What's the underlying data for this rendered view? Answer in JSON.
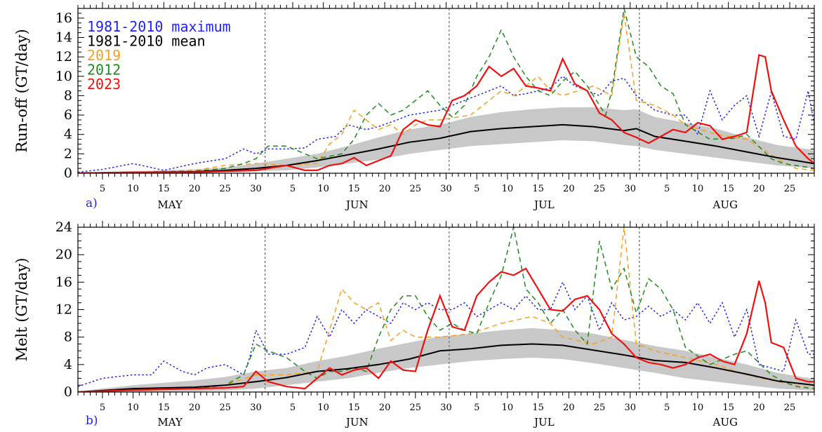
{
  "chart_data": [
    {
      "panel_label": "a)",
      "type": "line",
      "ylabel": "Run-off (GT/day)",
      "ylim": [
        0,
        17
      ],
      "yticks": [
        0,
        2,
        4,
        6,
        8,
        10,
        12,
        14,
        16
      ],
      "x_day_ticks": [
        "5",
        "10",
        "15",
        "20",
        "25",
        "30",
        "5",
        "10",
        "15",
        "20",
        "25",
        "30",
        "5",
        "10",
        "15",
        "20",
        "25",
        "30",
        "5",
        "10",
        "15",
        "20",
        "25"
      ],
      "months": [
        "MAY",
        "JUN",
        "JUL",
        "AUG"
      ],
      "legend": [
        {
          "label": "1981-2010 maximum",
          "color": "#2222ee"
        },
        {
          "label": "1981-2010 mean",
          "color": "#000000"
        },
        {
          "label": "2019",
          "color": "#f5a020"
        },
        {
          "label": "2012",
          "color": "#1f8a1f"
        },
        {
          "label": "2023",
          "color": "#ee1111"
        }
      ],
      "series": [
        {
          "name": "1981-2010 maximum",
          "color": "#2222ee",
          "style": "dotted",
          "x": [
            1,
            5,
            10,
            15,
            20,
            25,
            28,
            30,
            32,
            35,
            38,
            40,
            43,
            45,
            48,
            50,
            53,
            55,
            58,
            60,
            62,
            64,
            66,
            68,
            70,
            72,
            74,
            76,
            78,
            80,
            82,
            84,
            86,
            88,
            90,
            92,
            95,
            98,
            100,
            102,
            104,
            106,
            108,
            110,
            112,
            114,
            116,
            118,
            120,
            121
          ],
          "y": [
            0.1,
            0.4,
            1,
            0.3,
            1,
            1.5,
            2.5,
            2,
            2.5,
            2.5,
            2.6,
            3.5,
            3.8,
            5,
            4.5,
            4.8,
            5.5,
            6,
            6.3,
            6.5,
            7,
            7.5,
            8,
            8.5,
            9,
            8,
            8.2,
            8.5,
            8.8,
            10,
            9,
            8.5,
            8,
            9.5,
            9.8,
            8,
            6.5,
            6,
            6,
            4,
            8.5,
            5.5,
            7,
            8,
            3.8,
            8.4,
            3.8,
            3.5,
            8.5,
            5
          ]
        },
        {
          "name": "1981-2010 mean",
          "color": "#000000",
          "style": "solid",
          "x": [
            1,
            10,
            20,
            25,
            30,
            35,
            40,
            45,
            50,
            55,
            60,
            65,
            70,
            75,
            80,
            85,
            90,
            92,
            95,
            100,
            105,
            110,
            115,
            121
          ],
          "y": [
            0,
            0.1,
            0.15,
            0.3,
            0.5,
            0.8,
            1.3,
            1.9,
            2.5,
            3.2,
            3.6,
            4.3,
            4.6,
            4.8,
            5,
            4.8,
            4.4,
            4.6,
            3.8,
            3.3,
            2.8,
            2.2,
            1.6,
            1
          ]
        },
        {
          "name": "2019",
          "color": "#f5a020",
          "style": "dashed",
          "x": [
            1,
            10,
            20,
            25,
            30,
            35,
            40,
            42,
            44,
            46,
            48,
            50,
            52,
            54,
            56,
            58,
            60,
            65,
            70,
            72,
            74,
            76,
            78,
            80,
            85,
            88,
            90,
            92,
            95,
            98,
            100,
            105,
            110,
            115,
            118,
            121
          ],
          "y": [
            0,
            0.1,
            0.3,
            0.8,
            1,
            0.8,
            1,
            3,
            4,
            6.5,
            5.5,
            4.5,
            5,
            4,
            5,
            5.5,
            5.5,
            6,
            8.5,
            8,
            9,
            10,
            8.5,
            8,
            9,
            8,
            16.5,
            7.5,
            7,
            6,
            5,
            4,
            3.5,
            1.5,
            0.5,
            0.3
          ]
        },
        {
          "name": "2012",
          "color": "#1f8a1f",
          "style": "dashed",
          "x": [
            1,
            10,
            20,
            25,
            28,
            30,
            32,
            35,
            38,
            40,
            44,
            46,
            48,
            50,
            52,
            54,
            56,
            58,
            60,
            62,
            64,
            66,
            68,
            70,
            72,
            74,
            76,
            78,
            80,
            82,
            84,
            86,
            87,
            88,
            90,
            92,
            94,
            96,
            98,
            100,
            104,
            108,
            110,
            114,
            116,
            118,
            121
          ],
          "y": [
            0,
            0.1,
            0.2,
            0.5,
            1,
            1.5,
            2.8,
            2.8,
            2,
            1.5,
            2,
            3.5,
            6,
            7.2,
            6,
            6.5,
            7.5,
            8.5,
            7,
            5.8,
            7,
            10,
            12,
            14.8,
            12,
            10,
            8.5,
            8,
            9.5,
            10.5,
            9,
            7,
            6,
            8.5,
            17,
            12,
            11,
            9,
            8.2,
            5,
            3.5,
            3.6,
            4,
            1.5,
            1,
            0.8,
            0.5
          ]
        },
        {
          "name": "2023",
          "color": "#ee1111",
          "style": "solid",
          "x": [
            1,
            10,
            20,
            25,
            30,
            32,
            35,
            38,
            40,
            42,
            44,
            46,
            48,
            50,
            52,
            54,
            56,
            58,
            60,
            62,
            64,
            66,
            68,
            70,
            72,
            74,
            76,
            78,
            80,
            82,
            84,
            86,
            88,
            90,
            92,
            94,
            96,
            98,
            100,
            102,
            104,
            106,
            108,
            110,
            112,
            113,
            114,
            116,
            118,
            120,
            121
          ],
          "y": [
            0,
            0.1,
            0.1,
            0.2,
            0.3,
            0.5,
            0.8,
            0.3,
            0.3,
            0.8,
            1,
            1.6,
            0.8,
            1.3,
            1.8,
            4.5,
            5.5,
            5,
            4.8,
            7.5,
            8,
            9,
            11,
            10,
            10.8,
            9,
            8.8,
            8.5,
            11.8,
            9.2,
            8.5,
            6.2,
            5.5,
            4.2,
            3.7,
            3.1,
            3.8,
            4.5,
            4.2,
            5.2,
            4.9,
            3.5,
            3.8,
            4.2,
            12.2,
            12,
            8.5,
            5.5,
            2.8,
            1.5,
            1
          ]
        }
      ],
      "band": {
        "name": "1981-2010 range",
        "color": "#c8c8c8",
        "x": [
          1,
          10,
          20,
          25,
          30,
          35,
          40,
          45,
          50,
          55,
          60,
          65,
          70,
          75,
          80,
          85,
          90,
          92,
          95,
          100,
          105,
          110,
          115,
          121
        ],
        "lower": [
          0,
          0,
          0,
          0.1,
          0.2,
          0.3,
          0.6,
          1,
          1.4,
          2,
          2.4,
          2.8,
          3,
          3.2,
          3.4,
          3.3,
          2.9,
          2.8,
          2.4,
          2,
          1.6,
          1.2,
          0.8,
          0.5
        ],
        "upper": [
          0.1,
          0.2,
          0.4,
          0.6,
          1,
          1.5,
          2,
          2.8,
          3.7,
          4.5,
          5,
          5.8,
          6.3,
          6.6,
          6.8,
          6.8,
          6.5,
          6.6,
          5.8,
          5.2,
          4.6,
          3.7,
          2.9,
          2.4
        ]
      }
    },
    {
      "panel_label": "b)",
      "type": "line",
      "ylabel": "Melt (GT/day)",
      "ylim": [
        0,
        24
      ],
      "yticks": [
        0,
        4,
        8,
        12,
        16,
        20,
        24
      ],
      "x_day_ticks": [
        "5",
        "10",
        "15",
        "20",
        "25",
        "30",
        "5",
        "10",
        "15",
        "20",
        "25",
        "30",
        "5",
        "10",
        "15",
        "20",
        "25",
        "30",
        "5",
        "10",
        "15",
        "20",
        "25"
      ],
      "months": [
        "MAY",
        "JUN",
        "JUL",
        "AUG"
      ],
      "series": [
        {
          "name": "1981-2010 maximum",
          "color": "#2222ee",
          "style": "dotted",
          "x": [
            1,
            5,
            10,
            13,
            15,
            18,
            20,
            22,
            25,
            28,
            29,
            30,
            32,
            35,
            38,
            40,
            42,
            44,
            46,
            48,
            50,
            52,
            54,
            56,
            58,
            60,
            62,
            64,
            66,
            68,
            70,
            72,
            74,
            76,
            78,
            80,
            82,
            84,
            86,
            88,
            90,
            92,
            94,
            96,
            98,
            100,
            102,
            104,
            106,
            108,
            110,
            112,
            114,
            116,
            118,
            120,
            121
          ],
          "y": [
            0.8,
            2,
            2.5,
            2.5,
            4.5,
            3,
            2.5,
            3.5,
            4,
            2.5,
            5,
            9,
            5.5,
            5.5,
            6.5,
            11,
            8,
            12,
            10,
            12,
            11,
            10,
            13,
            12,
            13,
            12,
            12,
            13,
            11,
            12,
            13,
            12,
            14,
            12,
            12,
            16,
            12,
            14,
            9,
            13,
            10.5,
            11,
            12.5,
            11,
            12,
            10.5,
            13,
            10,
            13,
            8,
            12,
            4,
            3.5,
            3,
            10.5,
            5.5,
            5.5
          ]
        },
        {
          "name": "1981-2010 mean",
          "color": "#000000",
          "style": "solid",
          "x": [
            1,
            10,
            20,
            25,
            30,
            35,
            40,
            45,
            50,
            55,
            60,
            65,
            70,
            75,
            80,
            85,
            90,
            95,
            100,
            105,
            110,
            115,
            121
          ],
          "y": [
            0,
            0.5,
            0.7,
            1,
            1.5,
            2.1,
            3,
            3.4,
            4,
            4.8,
            6,
            6.3,
            6.8,
            7,
            6.8,
            6.1,
            5.4,
            4.6,
            4.3,
            3.5,
            2.6,
            1.6,
            1
          ]
        },
        {
          "name": "2019",
          "color": "#f5a020",
          "style": "dashed",
          "x": [
            1,
            10,
            20,
            25,
            30,
            35,
            40,
            42,
            44,
            46,
            48,
            50,
            52,
            54,
            56,
            58,
            60,
            65,
            70,
            75,
            78,
            80,
            85,
            88,
            90,
            92,
            95,
            100,
            105,
            110,
            115,
            121
          ],
          "y": [
            0,
            0.2,
            0.5,
            1,
            2.5,
            2.5,
            3,
            9,
            15,
            13,
            12,
            13,
            7.5,
            9,
            8,
            8,
            8,
            8.5,
            10,
            11,
            10,
            8,
            7,
            8,
            24,
            7,
            6,
            5,
            4,
            2.5,
            1.5,
            0.5
          ]
        },
        {
          "name": "2012",
          "color": "#1f8a1f",
          "style": "dashed",
          "x": [
            1,
            10,
            20,
            25,
            28,
            30,
            32,
            35,
            38,
            40,
            42,
            44,
            46,
            48,
            50,
            52,
            54,
            56,
            58,
            60,
            62,
            64,
            66,
            68,
            70,
            72,
            74,
            76,
            78,
            80,
            82,
            84,
            86,
            88,
            90,
            92,
            94,
            96,
            98,
            100,
            104,
            108,
            110,
            114,
            116,
            118,
            121
          ],
          "y": [
            0,
            0.3,
            0.5,
            1,
            2.5,
            7,
            6,
            5,
            3,
            2,
            3,
            3,
            3.5,
            3,
            8,
            12,
            14,
            14,
            11,
            9,
            10,
            9,
            8.5,
            13,
            17,
            24,
            15,
            13,
            10,
            12,
            9,
            7,
            22,
            15,
            18,
            11.5,
            16.5,
            15,
            12,
            6.5,
            4,
            5.5,
            6,
            2.5,
            1.5,
            0.8,
            0.5
          ]
        },
        {
          "name": "2023",
          "color": "#ee1111",
          "style": "solid",
          "x": [
            1,
            10,
            20,
            25,
            28,
            30,
            32,
            35,
            38,
            40,
            42,
            44,
            46,
            48,
            50,
            52,
            54,
            56,
            58,
            60,
            62,
            64,
            66,
            68,
            70,
            72,
            74,
            76,
            78,
            80,
            82,
            84,
            86,
            88,
            90,
            92,
            94,
            96,
            98,
            100,
            102,
            104,
            106,
            108,
            110,
            112,
            113,
            114,
            116,
            118,
            120,
            121
          ],
          "y": [
            0,
            0.3,
            0.5,
            0.6,
            0.8,
            3,
            1.5,
            0.8,
            0.5,
            2,
            3.5,
            2.5,
            3.2,
            3.5,
            2,
            4.5,
            3.2,
            3,
            9,
            14,
            9.5,
            9,
            14,
            16,
            17.5,
            17,
            18,
            15,
            12,
            11.8,
            13.5,
            14,
            12,
            8.5,
            7,
            5,
            4.3,
            4,
            3.5,
            4,
            5,
            5.5,
            4.5,
            4,
            8.5,
            16.2,
            13,
            7.2,
            6.5,
            2,
            1.5,
            1.5
          ]
        }
      ],
      "band": {
        "name": "1981-2010 range",
        "color": "#c8c8c8",
        "x": [
          1,
          10,
          20,
          25,
          30,
          35,
          40,
          45,
          50,
          55,
          60,
          65,
          70,
          75,
          80,
          85,
          90,
          95,
          100,
          105,
          110,
          115,
          121
        ],
        "lower": [
          0,
          0,
          0.1,
          0.2,
          0.5,
          1,
          1.5,
          2,
          2.8,
          3.5,
          4,
          4.5,
          4.8,
          5,
          4.8,
          4.2,
          3.5,
          2.8,
          2,
          1.5,
          1,
          0.5,
          0.2
        ],
        "upper": [
          0.1,
          1,
          1.7,
          2.2,
          3,
          3.5,
          4.5,
          5.3,
          6.3,
          7.2,
          8.1,
          8.5,
          9,
          9.3,
          9,
          8.5,
          7.6,
          6.7,
          6,
          5,
          4,
          2.8,
          1.9
        ]
      }
    }
  ]
}
